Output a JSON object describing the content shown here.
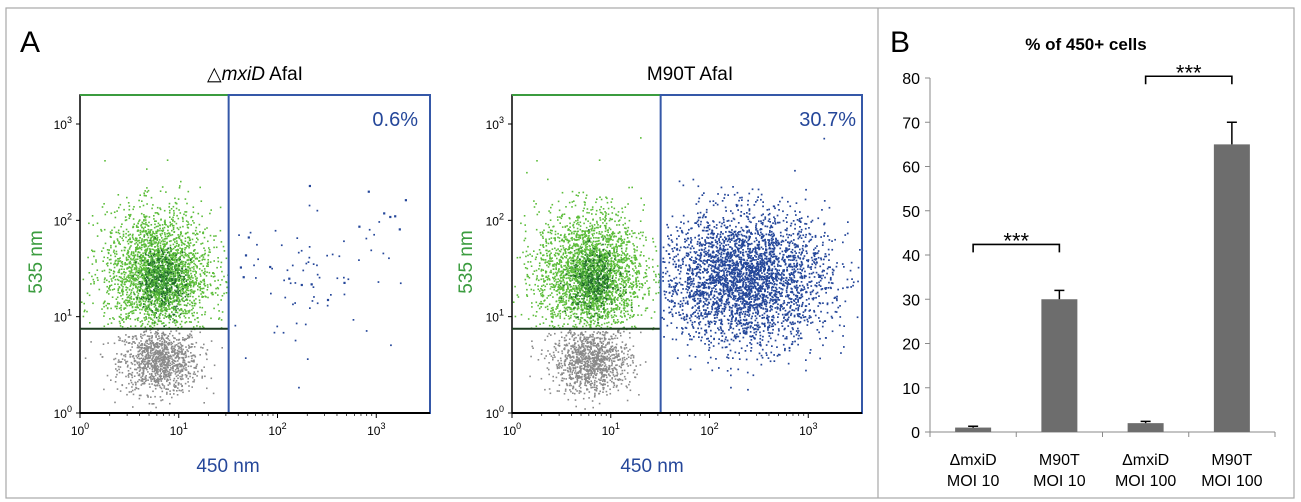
{
  "panel_labels": {
    "a": "A",
    "b": "B"
  },
  "colors": {
    "border": "#a8a8a8",
    "green": "#5cbd3a",
    "green_dark": "#1f6a2c",
    "green_mid": "#3f9a37",
    "blue": "#25479a",
    "grey": "#8a8a8a",
    "gate_green": "#3b9c3f",
    "bar": "#6d6d6d",
    "axis": "#000000"
  },
  "chart_data": [
    {
      "type": "scatter",
      "title_delta": "△",
      "title_italic": "mxiD",
      "title_rest": " AfaI",
      "percent_label": "0.6%",
      "xlabel": "450 nm",
      "ylabel": "535 nm",
      "scale": "log",
      "xlim": [
        1,
        3500
      ],
      "ylim": [
        1,
        2000
      ],
      "x_ticks": [
        {
          "base": "10",
          "exp": "0"
        },
        {
          "base": "10",
          "exp": "1"
        },
        {
          "base": "10",
          "exp": "2"
        },
        {
          "base": "10",
          "exp": "3"
        }
      ],
      "y_ticks": [
        {
          "base": "10",
          "exp": "0"
        },
        {
          "base": "10",
          "exp": "1"
        },
        {
          "base": "10",
          "exp": "2"
        },
        {
          "base": "10",
          "exp": "3"
        }
      ],
      "gate_x": 32,
      "gate_y": 7.5,
      "positive_percent": 0.6
    },
    {
      "type": "scatter",
      "title": "M90T AfaI",
      "percent_label": "30.7%",
      "xlabel": "450 nm",
      "ylabel": "535 nm",
      "scale": "log",
      "xlim": [
        1,
        3500
      ],
      "ylim": [
        1,
        2000
      ],
      "x_ticks": [
        {
          "base": "10",
          "exp": "0"
        },
        {
          "base": "10",
          "exp": "1"
        },
        {
          "base": "10",
          "exp": "2"
        },
        {
          "base": "10",
          "exp": "3"
        }
      ],
      "y_ticks": [
        {
          "base": "10",
          "exp": "0"
        },
        {
          "base": "10",
          "exp": "1"
        },
        {
          "base": "10",
          "exp": "2"
        },
        {
          "base": "10",
          "exp": "3"
        }
      ],
      "gate_x": 32,
      "gate_y": 7.5,
      "positive_percent": 30.7
    },
    {
      "type": "bar",
      "title": "% of 450+ cells",
      "categories": [
        [
          "ΔmxiD",
          "MOI 10"
        ],
        [
          "M90T",
          "MOI 10"
        ],
        [
          "ΔmxiD",
          "MOI 100"
        ],
        [
          "M90T",
          "MOI 100"
        ]
      ],
      "values": [
        1,
        30,
        2,
        65
      ],
      "errors": [
        0.3,
        2,
        0.4,
        5
      ],
      "ylim": [
        0,
        80
      ],
      "y_ticks": [
        "0",
        "10",
        "20",
        "30",
        "40",
        "50",
        "60",
        "70",
        "80"
      ],
      "significance": [
        {
          "from": 0,
          "to": 1,
          "label": "***"
        },
        {
          "from": 2,
          "to": 3,
          "label": "***"
        }
      ]
    }
  ]
}
